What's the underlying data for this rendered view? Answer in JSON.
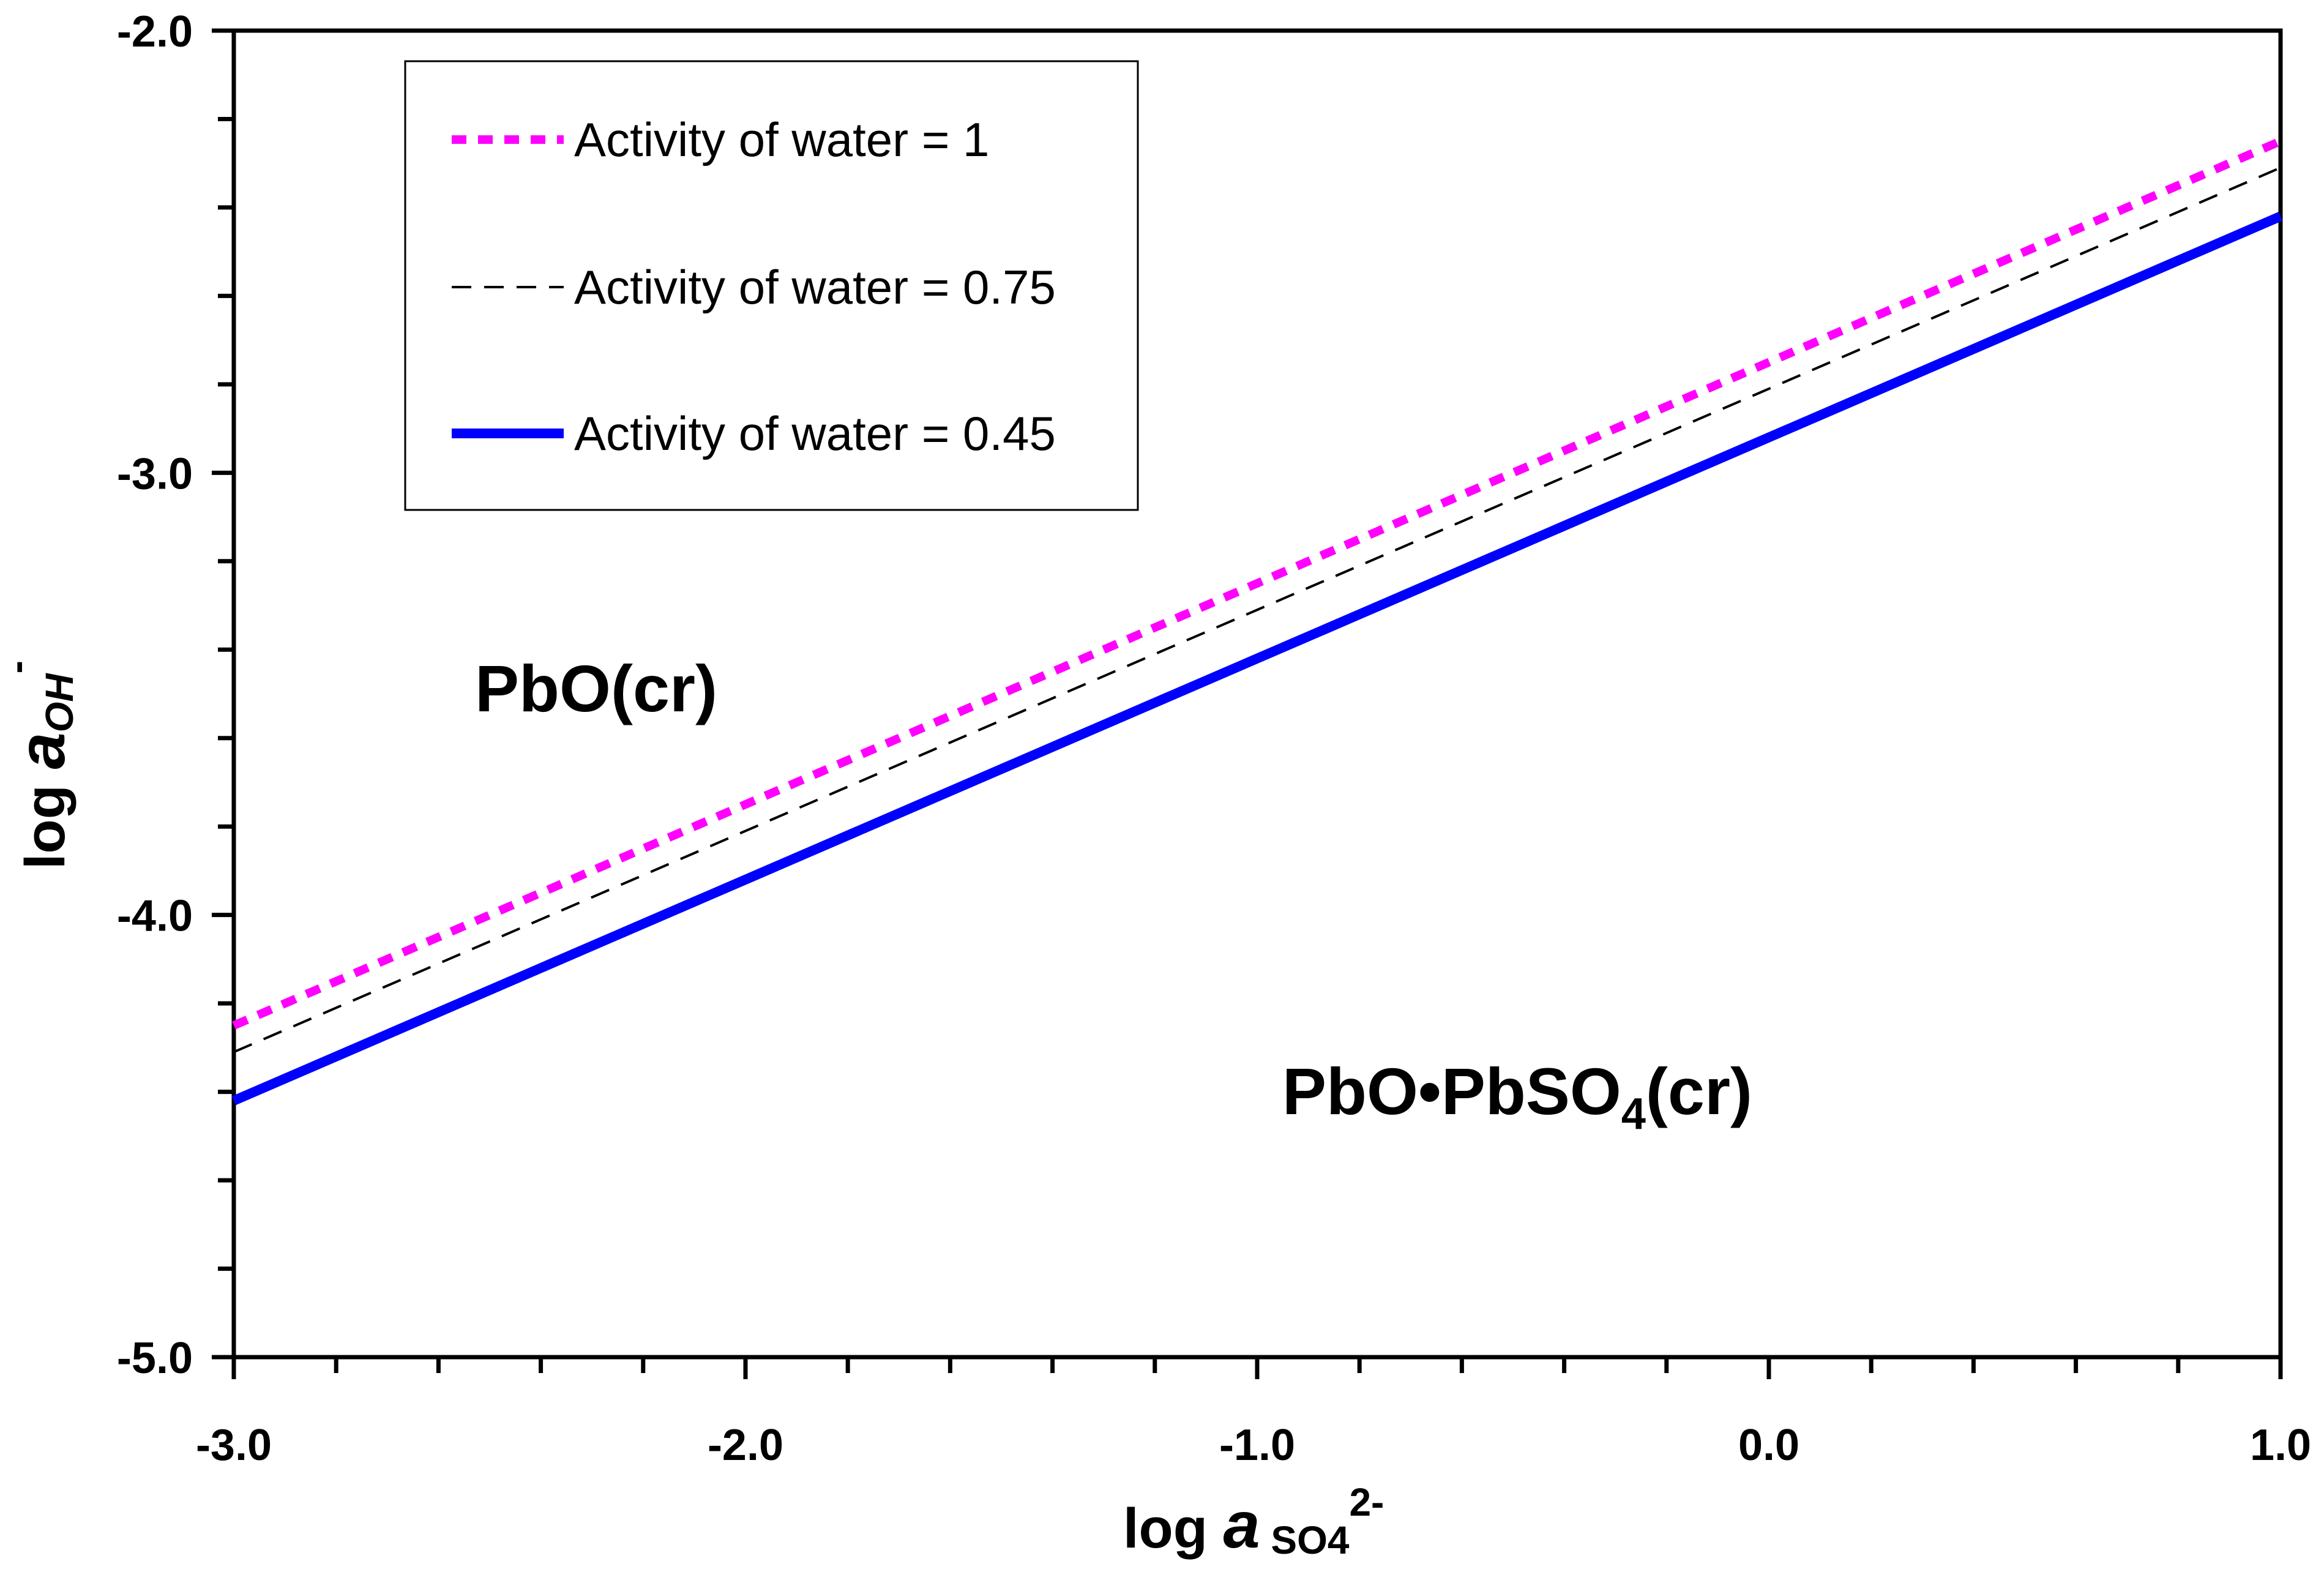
{
  "chart_data": {
    "type": "line",
    "title": "",
    "xlabel": {
      "prefix": "log ",
      "italic": "a",
      "subscript": " SO4",
      "superscript": "2-"
    },
    "ylabel": {
      "prefix": "log ",
      "italic": "a",
      "subscript": "OH",
      "superscript": "-"
    },
    "xlim": [
      -3.0,
      1.0
    ],
    "ylim": [
      -5.0,
      -2.0
    ],
    "x_ticks": [
      -3.0,
      -2.0,
      -1.0,
      0.0,
      1.0
    ],
    "x_tick_labels": [
      "-3.0",
      "-2.0",
      "-1.0",
      "0.0",
      "1.0"
    ],
    "y_ticks": [
      -5.0,
      -4.0,
      -3.0,
      -2.0
    ],
    "y_tick_labels": [
      "-5.0",
      "-4.0",
      "-3.0",
      "-2.0"
    ],
    "x_minor_step": 0.2,
    "y_minor_step": 0.2,
    "grid": false,
    "legend_position": "top-left",
    "series": [
      {
        "name": "Activity of water = 1",
        "color": "#ff00ff",
        "style": "dotted",
        "x": [
          -3.0,
          1.0
        ],
        "y": [
          -4.25,
          -2.25
        ]
      },
      {
        "name": "Activity of water = 0.75",
        "color": "#000000",
        "style": "dashed",
        "x": [
          -3.0,
          1.0
        ],
        "y": [
          -4.31,
          -2.31
        ]
      },
      {
        "name": "Activity of water = 0.45",
        "color": "#0000ff",
        "style": "solid",
        "x": [
          -3.0,
          1.0
        ],
        "y": [
          -4.42,
          -2.42
        ]
      }
    ],
    "annotations": [
      {
        "id": "pbo",
        "text": "PbO(cr)",
        "x": -2.55,
        "y": -3.5
      },
      {
        "id": "pbo-pbso4",
        "text": "PbO•PbSO",
        "subscript": "4",
        "suffix": "(cr)",
        "x": -0.97,
        "y": -4.4
      }
    ]
  }
}
